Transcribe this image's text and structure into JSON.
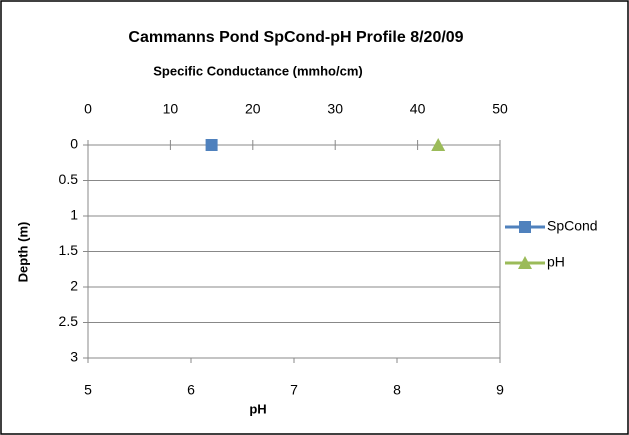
{
  "chart_data": {
    "type": "scatter",
    "title": "Cammanns Pond SpCond-pH Profile 8/20/09",
    "x2label": "Specific Conductance  (mmho/cm)",
    "xlabel": "pH",
    "ylabel": "Depth (m)",
    "xlim": [
      5,
      9
    ],
    "xticks": [
      5,
      6,
      7,
      8,
      9
    ],
    "x2lim": [
      0,
      50
    ],
    "x2ticks": [
      0,
      10,
      20,
      30,
      40,
      50
    ],
    "ylim": [
      0,
      3
    ],
    "yticks": [
      0,
      0.5,
      1,
      1.5,
      2,
      2.5,
      3
    ],
    "y_inverted": true,
    "grid": true,
    "legend": "right",
    "series": [
      {
        "name": "SpCond",
        "color": "#4f81bd",
        "marker": "square",
        "axis": "x2",
        "x": [
          15
        ],
        "y": [
          0
        ]
      },
      {
        "name": "pH",
        "color": "#9bbb59",
        "marker": "triangle",
        "axis": "x",
        "x": [
          8.4
        ],
        "y": [
          0
        ]
      }
    ]
  }
}
